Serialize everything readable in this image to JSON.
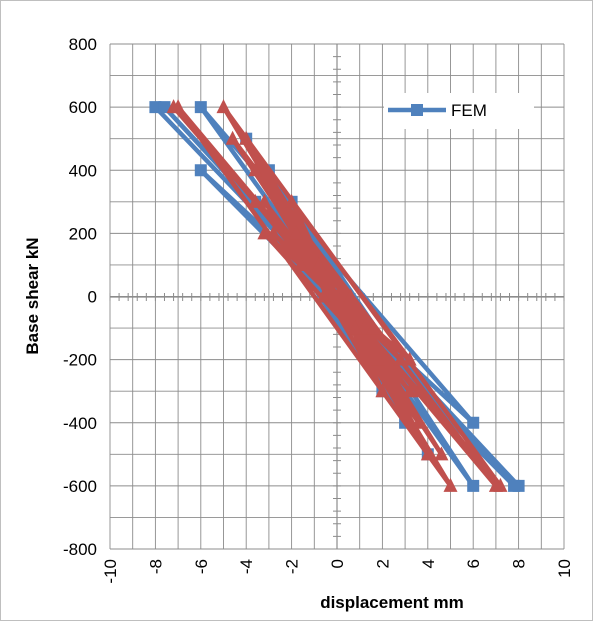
{
  "chart_data": {
    "type": "line",
    "xlabel": "displacement mm",
    "ylabel": "Base shear kN",
    "xlim": [
      -10,
      10
    ],
    "ylim": [
      -800,
      800
    ],
    "x_ticks": [
      "-10",
      "-8",
      "-6",
      "-4",
      "-2",
      "0",
      "2",
      "4",
      "6",
      "8",
      "10"
    ],
    "y_ticks": [
      "800",
      "600",
      "400",
      "200",
      "0",
      "-200",
      "-400",
      "-600",
      "-800"
    ],
    "grid": true,
    "legend": {
      "placement": "top-right"
    },
    "series": [
      {
        "name": "FEM",
        "color": "#4f81bd",
        "marker": "square",
        "points": [
          [
            0,
            0
          ],
          [
            -8,
            600
          ],
          [
            8,
            -600
          ],
          [
            -7.6,
            600
          ],
          [
            7.8,
            -600
          ],
          [
            -6,
            400
          ],
          [
            6,
            -400
          ],
          [
            -6,
            600
          ],
          [
            6,
            -600
          ],
          [
            -4,
            500
          ],
          [
            4,
            -500
          ],
          [
            -3.6,
            300
          ],
          [
            3.6,
            -300
          ],
          [
            -3,
            400
          ],
          [
            3,
            -400
          ],
          [
            -2,
            300
          ],
          [
            2,
            -300
          ],
          [
            -2.4,
            200
          ],
          [
            2.4,
            -200
          ],
          [
            -1,
            100
          ],
          [
            1,
            -100
          ],
          [
            -2.2,
            200
          ],
          [
            2.2,
            -200
          ],
          [
            -1.4,
            100
          ],
          [
            1.4,
            -100
          ],
          [
            -0.4,
            0
          ],
          [
            0.4,
            0
          ],
          [
            0,
            0
          ]
        ]
      },
      {
        "name": "",
        "color": "#c0504d",
        "marker": "triangle",
        "points": [
          [
            0,
            0
          ],
          [
            -7.2,
            600
          ],
          [
            7.2,
            -600
          ],
          [
            -5,
            600
          ],
          [
            5,
            -600
          ],
          [
            -7,
            600
          ],
          [
            7,
            -600
          ],
          [
            -4.6,
            500
          ],
          [
            4.6,
            -500
          ],
          [
            -4,
            500
          ],
          [
            4,
            -500
          ],
          [
            -3.6,
            400
          ],
          [
            3.6,
            -400
          ],
          [
            -3.2,
            300
          ],
          [
            3.2,
            -300
          ],
          [
            -3.6,
            300
          ],
          [
            3.6,
            -300
          ],
          [
            -2.8,
            200
          ],
          [
            2.8,
            -200
          ],
          [
            -1.8,
            200
          ],
          [
            1.8,
            -200
          ],
          [
            -3.2,
            200
          ],
          [
            3.2,
            -200
          ],
          [
            -2,
            300
          ],
          [
            2,
            -300
          ],
          [
            -1.2,
            100
          ],
          [
            1.2,
            -100
          ],
          [
            -1.6,
            100
          ],
          [
            1.6,
            -100
          ],
          [
            -0.8,
            100
          ],
          [
            0.8,
            -100
          ],
          [
            -0.6,
            0
          ],
          [
            0.6,
            0
          ],
          [
            0,
            0
          ]
        ]
      }
    ]
  }
}
